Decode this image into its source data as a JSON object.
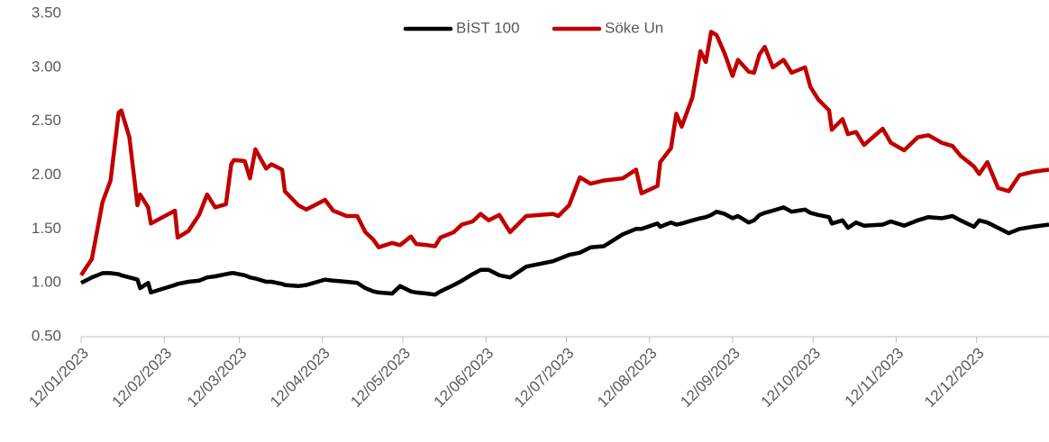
{
  "chart_data": {
    "type": "line",
    "x": [
      "2023-01-12",
      "2023-01-16",
      "2023-01-20",
      "2023-01-23",
      "2023-01-26",
      "2023-01-27",
      "2023-01-30",
      "2023-02-02",
      "2023-02-03",
      "2023-02-06",
      "2023-02-07",
      "2023-02-16",
      "2023-02-17",
      "2023-02-21",
      "2023-02-25",
      "2023-02-28",
      "2023-03-03",
      "2023-03-07",
      "2023-03-09",
      "2023-03-10",
      "2023-03-14",
      "2023-03-16",
      "2023-03-18",
      "2023-03-22",
      "2023-03-24",
      "2023-03-28",
      "2023-03-29",
      "2023-04-03",
      "2023-04-06",
      "2023-04-13",
      "2023-04-16",
      "2023-04-21",
      "2023-04-25",
      "2023-04-28",
      "2023-05-01",
      "2023-05-03",
      "2023-05-08",
      "2023-05-11",
      "2023-05-15",
      "2023-05-17",
      "2023-05-21",
      "2023-05-24",
      "2023-05-26",
      "2023-05-31",
      "2023-06-03",
      "2023-06-07",
      "2023-06-10",
      "2023-06-13",
      "2023-06-17",
      "2023-06-21",
      "2023-06-27",
      "2023-07-07",
      "2023-07-09",
      "2023-07-13",
      "2023-07-17",
      "2023-07-21",
      "2023-07-26",
      "2023-08-02",
      "2023-08-07",
      "2023-08-09",
      "2023-08-15",
      "2023-08-16",
      "2023-08-20",
      "2023-08-22",
      "2023-08-24",
      "2023-08-28",
      "2023-08-31",
      "2023-09-02",
      "2023-09-04",
      "2023-09-06",
      "2023-09-09",
      "2023-09-12",
      "2023-09-14",
      "2023-09-18",
      "2023-09-20",
      "2023-09-22",
      "2023-09-24",
      "2023-09-27",
      "2023-10-01",
      "2023-10-04",
      "2023-10-09",
      "2023-10-11",
      "2023-10-14",
      "2023-10-18",
      "2023-10-19",
      "2023-10-23",
      "2023-10-25",
      "2023-10-28",
      "2023-10-31",
      "2023-11-07",
      "2023-11-10",
      "2023-11-15",
      "2023-11-20",
      "2023-11-24",
      "2023-11-29",
      "2023-12-03",
      "2023-12-06",
      "2023-12-11",
      "2023-12-13",
      "2023-12-16",
      "2023-12-20",
      "2023-12-24",
      "2023-12-28",
      "2024-01-02",
      "2024-01-08"
    ],
    "series": [
      {
        "name": "BİST 100",
        "color": "#000000",
        "values": [
          1.0,
          1.05,
          1.09,
          1.09,
          1.08,
          1.07,
          1.05,
          1.03,
          0.95,
          1.0,
          0.91,
          0.98,
          0.99,
          1.01,
          1.02,
          1.05,
          1.06,
          1.08,
          1.09,
          1.09,
          1.07,
          1.05,
          1.04,
          1.01,
          1.01,
          0.99,
          0.98,
          0.97,
          0.98,
          1.03,
          1.02,
          1.01,
          1.0,
          0.95,
          0.92,
          0.91,
          0.9,
          0.97,
          0.92,
          0.91,
          0.9,
          0.89,
          0.92,
          0.98,
          1.02,
          1.08,
          1.12,
          1.12,
          1.07,
          1.05,
          1.15,
          1.2,
          1.22,
          1.26,
          1.28,
          1.33,
          1.34,
          1.45,
          1.5,
          1.5,
          1.55,
          1.52,
          1.56,
          1.54,
          1.55,
          1.58,
          1.6,
          1.61,
          1.63,
          1.66,
          1.64,
          1.6,
          1.62,
          1.56,
          1.58,
          1.63,
          1.65,
          1.67,
          1.7,
          1.66,
          1.68,
          1.65,
          1.63,
          1.61,
          1.55,
          1.58,
          1.51,
          1.56,
          1.53,
          1.54,
          1.57,
          1.53,
          1.58,
          1.61,
          1.6,
          1.62,
          1.58,
          1.52,
          1.58,
          1.56,
          1.51,
          1.46,
          1.5,
          1.52,
          1.54
        ]
      },
      {
        "name": "Söke Un",
        "color": "#c00000",
        "values": [
          1.07,
          1.22,
          1.75,
          1.95,
          2.58,
          2.6,
          2.35,
          1.72,
          1.82,
          1.7,
          1.55,
          1.67,
          1.42,
          1.48,
          1.63,
          1.82,
          1.7,
          1.73,
          2.1,
          2.14,
          2.13,
          1.97,
          2.24,
          2.06,
          2.1,
          2.05,
          1.85,
          1.72,
          1.68,
          1.77,
          1.67,
          1.62,
          1.62,
          1.47,
          1.4,
          1.33,
          1.37,
          1.35,
          1.43,
          1.36,
          1.35,
          1.34,
          1.42,
          1.47,
          1.54,
          1.57,
          1.64,
          1.58,
          1.63,
          1.47,
          1.62,
          1.64,
          1.62,
          1.72,
          1.98,
          1.92,
          1.95,
          1.97,
          2.05,
          1.83,
          1.9,
          2.12,
          2.25,
          2.57,
          2.45,
          2.72,
          3.15,
          3.05,
          3.33,
          3.3,
          3.13,
          2.92,
          3.07,
          2.96,
          2.95,
          3.12,
          3.19,
          3.0,
          3.07,
          2.95,
          3.0,
          2.82,
          2.7,
          2.6,
          2.42,
          2.52,
          2.38,
          2.4,
          2.28,
          2.43,
          2.3,
          2.23,
          2.35,
          2.37,
          2.3,
          2.27,
          2.18,
          2.08,
          2.01,
          2.12,
          1.88,
          1.85,
          2.0,
          2.03,
          2.05
        ]
      }
    ],
    "xlim": [
      "2023-01-12",
      "2024-01-08"
    ],
    "xticks": [
      {
        "value": "2023-01-12",
        "label": "12/01/2023"
      },
      {
        "value": "2023-02-12",
        "label": "12/02/2023"
      },
      {
        "value": "2023-03-12",
        "label": "12/03/2023"
      },
      {
        "value": "2023-04-12",
        "label": "12/04/2023"
      },
      {
        "value": "2023-05-12",
        "label": "12/05/2023"
      },
      {
        "value": "2023-06-12",
        "label": "12/06/2023"
      },
      {
        "value": "2023-07-12",
        "label": "12/07/2023"
      },
      {
        "value": "2023-08-12",
        "label": "12/08/2023"
      },
      {
        "value": "2023-09-12",
        "label": "12/09/2023"
      },
      {
        "value": "2023-10-12",
        "label": "12/10/2023"
      },
      {
        "value": "2023-11-12",
        "label": "12/11/2023"
      },
      {
        "value": "2023-12-12",
        "label": "12/12/2023"
      }
    ],
    "ylim": [
      0.5,
      3.5
    ],
    "yticks": [
      {
        "value": 0.5,
        "label": "0.50"
      },
      {
        "value": 1,
        "label": "1.00"
      },
      {
        "value": 1.5,
        "label": "1.50"
      },
      {
        "value": 2,
        "label": "2.00"
      },
      {
        "value": 2.5,
        "label": "2.50"
      },
      {
        "value": 3,
        "label": "3.00"
      },
      {
        "value": 3.5,
        "label": "3.50"
      }
    ],
    "grid": false,
    "legend": "upper center"
  }
}
